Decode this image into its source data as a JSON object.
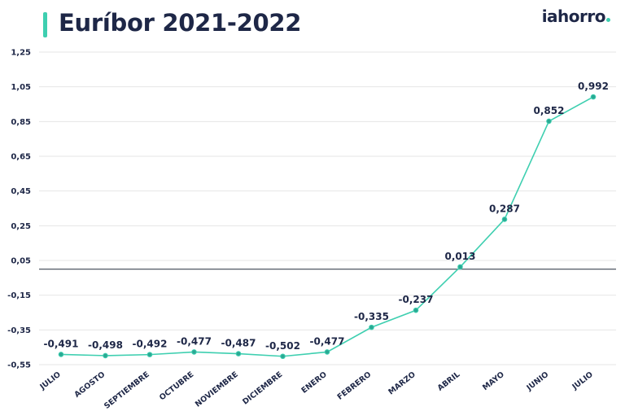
{
  "header": {
    "title": "Euríbor 2021-2022",
    "logo_text": "iahorro",
    "accent_color": "#3ecfb0",
    "logo_dot_color": "#3ecfb0"
  },
  "chart_data": {
    "type": "line",
    "title": "Euríbor 2021-2022",
    "xlabel": "",
    "ylabel": "",
    "categories": [
      "JULIO",
      "AGOSTO",
      "SEPTIEMBRE",
      "OCTUBRE",
      "NOVIEMBRE",
      "DICIEMBRE",
      "ENERO",
      "FEBRERO",
      "MARZO",
      "ABRIL",
      "MAYO",
      "JUNIO",
      "JULIO"
    ],
    "values": [
      -0.491,
      -0.498,
      -0.492,
      -0.477,
      -0.487,
      -0.502,
      -0.477,
      -0.335,
      -0.237,
      0.013,
      0.287,
      0.852,
      0.992
    ],
    "value_labels": [
      "-0,491",
      "-0,498",
      "-0,492",
      "-0,477",
      "-0,487",
      "-0,502",
      "-0,477",
      "-0,335",
      "-0,237",
      "0,013",
      "0,287",
      "0,852",
      "0,992"
    ],
    "yticks": [
      1.25,
      1.05,
      0.85,
      0.65,
      0.45,
      0.25,
      0.05,
      -0.15,
      -0.35,
      -0.55
    ],
    "ytick_labels": [
      "1,25",
      "1,05",
      "0,85",
      "0,65",
      "0,45",
      "0,25",
      "0,05",
      "-0,15",
      "-0,35",
      "-0,55"
    ],
    "ylim": [
      -0.55,
      1.25
    ],
    "zero_line": 0,
    "grid": true,
    "line_color": "#3ecfb0",
    "marker_fill": "#2aa893",
    "zero_line_color": "#3a4250",
    "grid_color": "#e6e6e6"
  }
}
